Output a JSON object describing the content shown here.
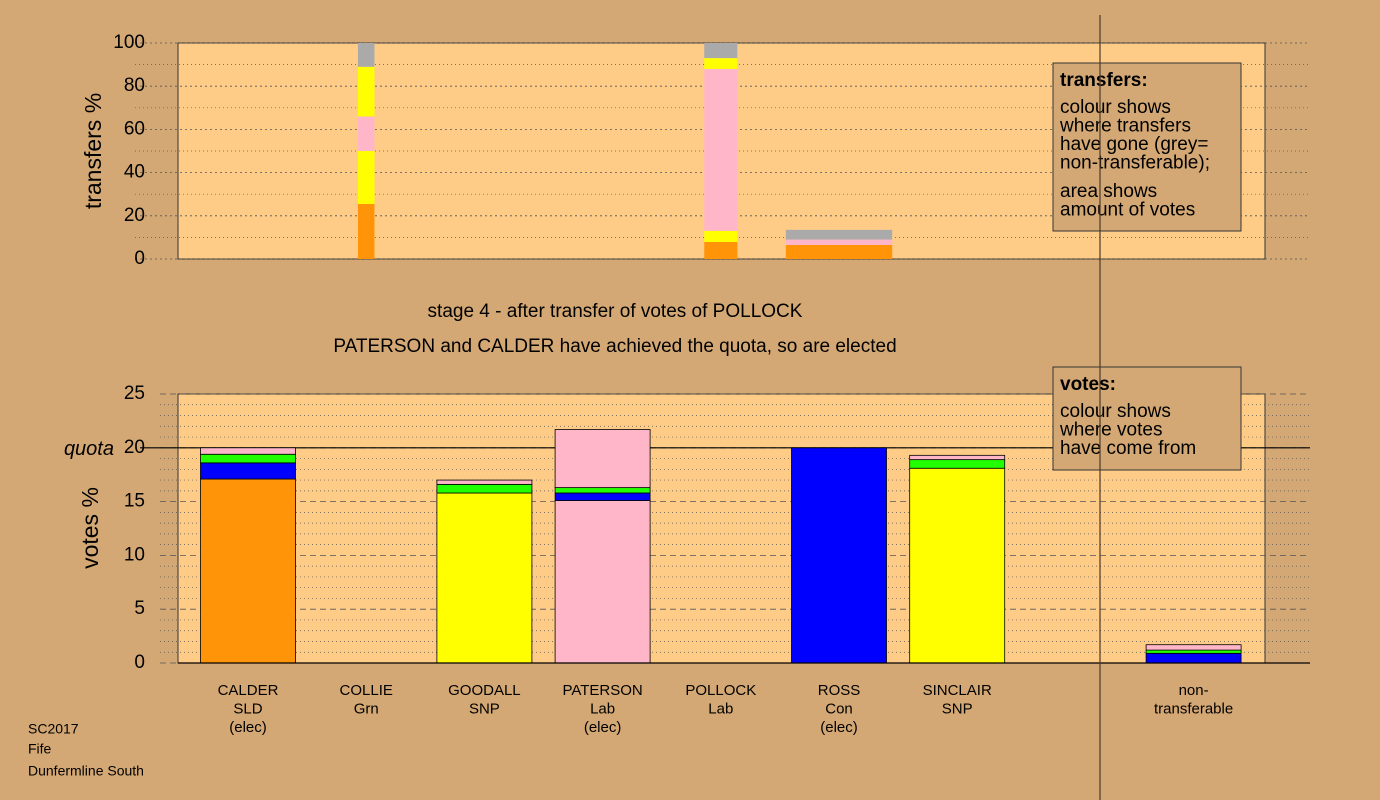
{
  "chart_data": [
    {
      "type": "bar",
      "stacked": true,
      "ylabel": "transfers %",
      "ylim": [
        0,
        100
      ],
      "yticks": [
        0,
        20,
        40,
        60,
        80,
        100
      ],
      "minor_grid": 10,
      "bar_widths": [
        null,
        0.14,
        null,
        null,
        0.28,
        0.9,
        null,
        null
      ],
      "series": [
        {
          "color": "#ff9408",
          "values": [
            null,
            25.5,
            null,
            null,
            7.9,
            6.5,
            null,
            null
          ]
        },
        {
          "color": "#ffff00",
          "values": [
            null,
            24.5,
            null,
            null,
            5.1,
            null,
            null,
            null
          ]
        },
        {
          "color": "#ffb6c8",
          "values": [
            null,
            16,
            null,
            null,
            75,
            2.5,
            null,
            null
          ]
        },
        {
          "color": "#ffff00",
          "values": [
            null,
            23,
            null,
            null,
            5,
            null,
            null,
            null
          ]
        },
        {
          "color": "#aaaaaa",
          "values": [
            null,
            11,
            null,
            null,
            7,
            4.5,
            null,
            null
          ]
        }
      ],
      "note": {
        "title": "transfers:",
        "paragraphs": [
          [
            "colour shows",
            "where transfers",
            "have gone (grey=",
            "non-transferable);"
          ],
          [
            "area shows",
            "amount of votes"
          ]
        ]
      }
    },
    {
      "type": "bar",
      "stacked": true,
      "title": "stage 4 - after transfer of votes of POLLOCK",
      "subtitle": "PATERSON and CALDER have achieved the quota, so are elected",
      "ylabel": "votes %",
      "ylim": [
        0,
        25
      ],
      "yticks": [
        0,
        5,
        10,
        15,
        20,
        25
      ],
      "minor_grid": 1,
      "quota": {
        "value": 20,
        "label": "quota"
      },
      "categories": [
        [
          "CALDER",
          "SLD",
          "(elec)"
        ],
        [
          "COLLIE",
          "Grn"
        ],
        [
          "GOODALL",
          "SNP"
        ],
        [
          "PATERSON",
          "Lab",
          "(elec)"
        ],
        [
          "POLLOCK",
          "Lab"
        ],
        [
          "ROSS",
          "Con",
          "(elec)"
        ],
        [
          "SINCLAIR",
          "SNP"
        ],
        [
          "non-",
          "transferable"
        ]
      ],
      "series": [
        {
          "colors": [
            "#ff9408",
            "#22ff00",
            "#ffff00",
            "#ffb6c8",
            "#ffb6c8",
            "#0000ff",
            "#ffff00",
            null
          ],
          "values": [
            17.1,
            0,
            15.8,
            15.1,
            0,
            20,
            18.1,
            null
          ]
        },
        {
          "color": "#0000ff",
          "values": [
            1.5,
            0,
            0,
            0.7,
            0,
            null,
            0,
            0.9
          ]
        },
        {
          "color": "#22ff00",
          "values": [
            0.8,
            0,
            0.8,
            0.5,
            0,
            null,
            0.8,
            0.3
          ]
        },
        {
          "color": "#ffb6c8",
          "values": [
            0.6,
            0,
            0.4,
            5.4,
            0,
            null,
            0.4,
            0.5
          ]
        }
      ],
      "note": {
        "title": "votes:",
        "paragraphs": [
          [
            "colour shows",
            "where votes",
            "have come from"
          ]
        ]
      }
    }
  ],
  "footer": [
    "SC2017",
    "Fife",
    "Dunfermline South"
  ]
}
